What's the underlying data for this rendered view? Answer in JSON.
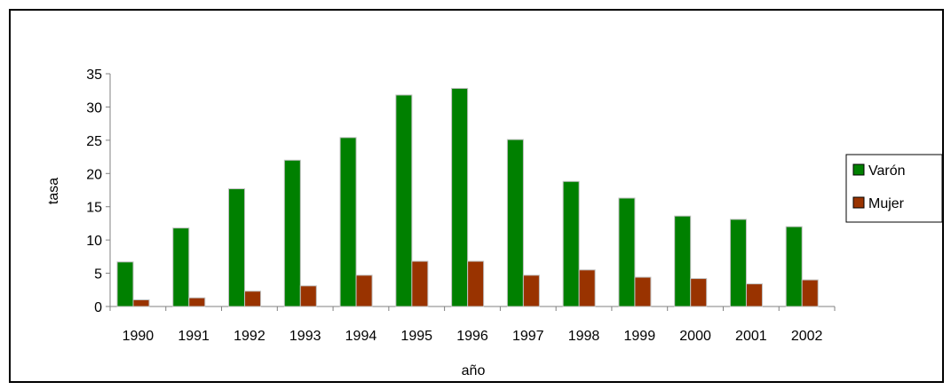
{
  "chart_data": {
    "type": "bar",
    "title": "",
    "xlabel": "año",
    "ylabel": "tasa",
    "ylim": [
      0,
      35
    ],
    "yticks": [
      0,
      5,
      10,
      15,
      20,
      25,
      30,
      35
    ],
    "grid": false,
    "legend_position": "right",
    "categories": [
      "1990",
      "1991",
      "1992",
      "1993",
      "1994",
      "1995",
      "1996",
      "1997",
      "1998",
      "1999",
      "2000",
      "2001",
      "2002"
    ],
    "series": [
      {
        "name": "Varón",
        "color": "#008000",
        "values": [
          6.7,
          11.8,
          17.7,
          22.0,
          25.4,
          31.8,
          32.8,
          25.1,
          18.8,
          16.3,
          13.6,
          13.1,
          12.0
        ]
      },
      {
        "name": "Mujer",
        "color": "#993300",
        "values": [
          1.0,
          1.3,
          2.3,
          3.1,
          4.7,
          6.8,
          6.8,
          4.7,
          5.5,
          4.4,
          4.2,
          3.4,
          4.0
        ]
      }
    ]
  }
}
